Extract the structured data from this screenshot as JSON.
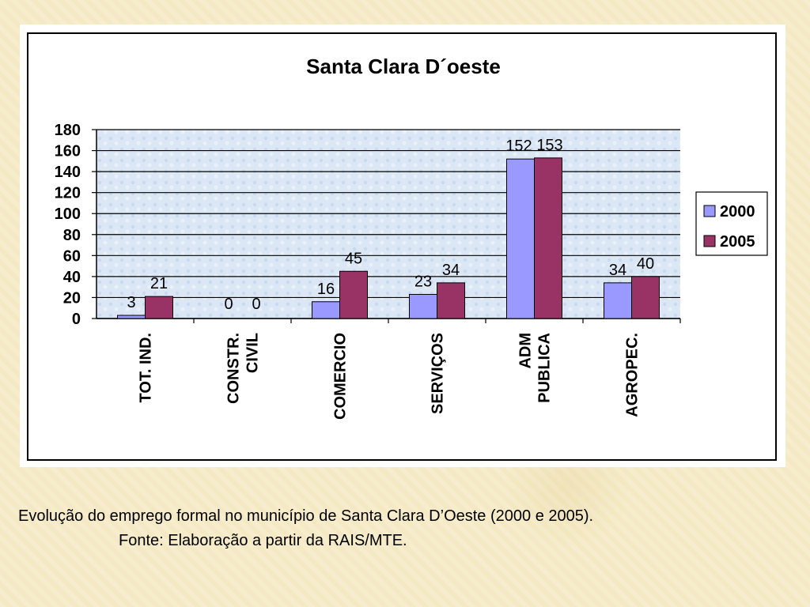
{
  "chart_data": {
    "type": "bar",
    "title": "Santa Clara D´oeste",
    "categories": [
      [
        "TOT. IND."
      ],
      [
        "CONSTR.",
        "CIVIL"
      ],
      [
        "COMERCIO"
      ],
      [
        "SERVIÇOS"
      ],
      [
        "ADM",
        "PUBLICA"
      ],
      [
        "AGROPEC."
      ]
    ],
    "series": [
      {
        "name": "2000",
        "values": [
          3,
          0,
          16,
          23,
          152,
          34
        ],
        "color": "#9999ff"
      },
      {
        "name": "2005",
        "values": [
          21,
          0,
          45,
          34,
          153,
          40
        ],
        "color": "#993366"
      }
    ],
    "ylim": [
      0,
      180
    ],
    "yticks": [
      0,
      20,
      40,
      60,
      80,
      100,
      120,
      140,
      160,
      180
    ],
    "grid": true,
    "legend": "right",
    "data_labels": true
  },
  "captions": {
    "line1": "Evolução do emprego formal no município de Santa Clara D’Oeste (2000 e 2005).",
    "line2": "Fonte: Elaboração  a partir da RAIS/MTE."
  }
}
